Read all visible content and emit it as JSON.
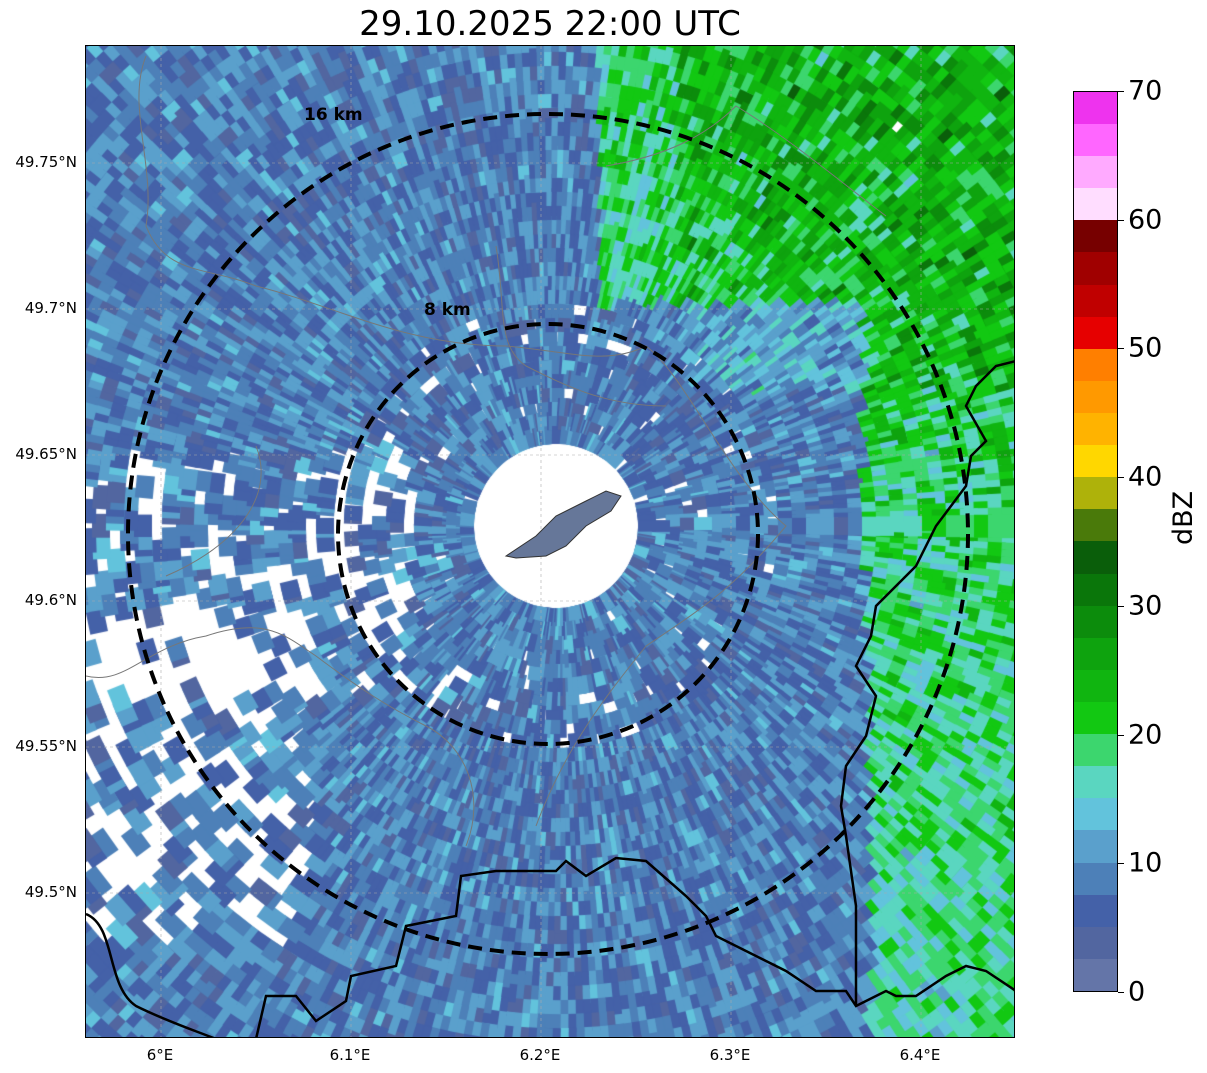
{
  "title": "29.10.2025 22:00 UTC",
  "map": {
    "x_ticks": [
      "6°E",
      "6.1°E",
      "6.2°E",
      "6.3°E",
      "6.4°E"
    ],
    "y_ticks": [
      "49.75°N",
      "49.7°N",
      "49.65°N",
      "49.6°N",
      "49.55°N",
      "49.5°N"
    ],
    "rings": [
      {
        "label": "8 km",
        "range_km": 8
      },
      {
        "label": "16 km",
        "range_km": 16
      }
    ]
  },
  "colorbar": {
    "label": "dBZ",
    "ticks": [
      "0",
      "10",
      "20",
      "30",
      "40",
      "50",
      "60",
      "70"
    ],
    "min": 0,
    "max": 70,
    "step": 2.5,
    "colors": [
      "#6475a8",
      "#5266a0",
      "#4461a8",
      "#4d80b8",
      "#5aa0cc",
      "#62c3dc",
      "#5ad6c0",
      "#3cd66e",
      "#12c812",
      "#10b510",
      "#0ea30e",
      "#0c8c0c",
      "#0a760a",
      "#0a5e0a",
      "#4a7a0a",
      "#aeb20a",
      "#ffd700",
      "#ffb300",
      "#ff9900",
      "#ff7f00",
      "#e60000",
      "#c00000",
      "#a00000",
      "#770000",
      "#ffddff",
      "#ffaaff",
      "#ff66ff",
      "#ee33ee"
    ]
  }
}
